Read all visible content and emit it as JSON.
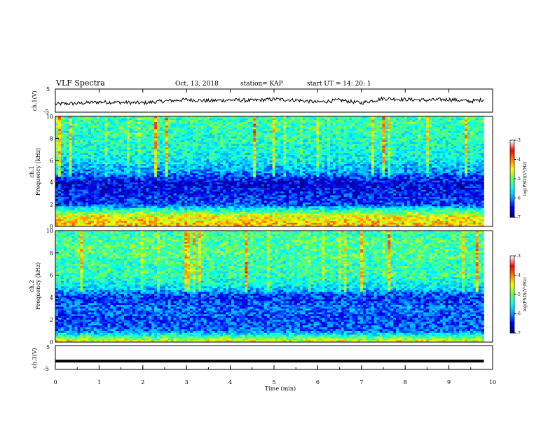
{
  "header": {
    "title": "VLF Spectra",
    "date": "Oct. 13, 2018",
    "station": "station= KAP",
    "start_time": "start  UT =   14: 20: 1"
  },
  "panels": {
    "ch1_wave_label": "ch.1(V)",
    "ch1_spec_label_1": "ch.1",
    "ch1_spec_label_2": "Frequency  (kHz)",
    "ch2_spec_label_1": "ch.2",
    "ch2_spec_label_2": "Frequency  (kHz)",
    "ch3_wave_label": "ch.3(V)"
  },
  "xaxis": {
    "label": "Time  (min)",
    "ticks": [
      "0",
      "1",
      "2",
      "3",
      "4",
      "5",
      "6",
      "7",
      "8",
      "9",
      "10"
    ]
  },
  "yaxis": {
    "wave_ticks": [
      "5",
      "-5"
    ],
    "freq_ticks": [
      "10",
      "8",
      "6",
      "4",
      "2",
      "0"
    ]
  },
  "colorbar": {
    "ticks": [
      "-3",
      "-4",
      "-5",
      "-6",
      "-7"
    ],
    "label": "log(PSD)(V²/Hz)"
  },
  "colors": {
    "spectrum": [
      "#000080",
      "#0000ff",
      "#00a0ff",
      "#00ffff",
      "#60ff60",
      "#ffff00",
      "#ff8000",
      "#ff0000",
      "#ffffff"
    ]
  },
  "chart_data": [
    {
      "type": "line",
      "name_ref": "ch.1(V)",
      "xlabel": "",
      "ylabel": "ch.1(V)",
      "xlim": [
        0,
        10
      ],
      "ylim": [
        -5,
        5
      ],
      "x": [
        0,
        0.5,
        1,
        1.5,
        2,
        2.5,
        3,
        3.5,
        4,
        4.5,
        5,
        5.5,
        6,
        6.5,
        7,
        7.5,
        8,
        8.5,
        9,
        9.5,
        9.8
      ],
      "values": [
        -1.5,
        -1.2,
        -0.6,
        -0.8,
        -1.0,
        -0.2,
        0.4,
        -0.1,
        0.3,
        0.0,
        0.6,
        0.2,
        -0.7,
        0.2,
        -1.0,
        0.9,
        0.5,
        0.2,
        0.5,
        -0.3,
        0.4
      ]
    },
    {
      "type": "heatmap",
      "ylabel": "ch.1 Frequency (kHz)",
      "xlim": [
        0,
        10
      ],
      "ylim": [
        0,
        10
      ],
      "value_range": [
        -7,
        -3
      ],
      "band_freqs_khz": [
        0,
        1,
        2,
        3,
        4,
        5,
        6,
        7,
        8,
        9,
        10
      ],
      "band_log_psd": [
        -3.8,
        -4.2,
        -6.2,
        -6.4,
        -6.6,
        -5.8,
        -5.4,
        -5.2,
        -5.1,
        -5.0,
        -5.0
      ]
    },
    {
      "type": "heatmap",
      "ylabel": "ch.2 Frequency (kHz)",
      "xlim": [
        0,
        10
      ],
      "ylim": [
        0,
        10
      ],
      "value_range": [
        -7,
        -3
      ],
      "band_freqs_khz": [
        0,
        1,
        2,
        3,
        4,
        5,
        6,
        7,
        8,
        9,
        10
      ],
      "band_log_psd": [
        -4.0,
        -6.0,
        -6.2,
        -6.0,
        -6.3,
        -5.4,
        -5.0,
        -5.0,
        -4.9,
        -4.9,
        -5.0
      ]
    },
    {
      "type": "line",
      "ylabel": "ch.3(V)",
      "xlim": [
        0,
        10
      ],
      "ylim": [
        -5,
        5
      ],
      "x": [
        0,
        9.8
      ],
      "values": [
        -1.5,
        -1.5
      ]
    }
  ]
}
